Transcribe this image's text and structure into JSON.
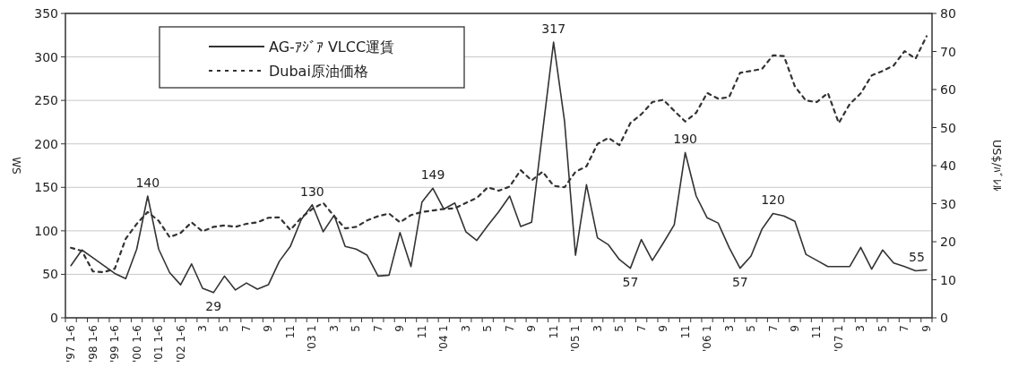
{
  "chart_data": {
    "type": "line",
    "ylabel": "WS",
    "y2label": "US$/ﾊﾞﾚﾙ",
    "ylim": [
      0,
      350
    ],
    "yticks": [
      0,
      50,
      100,
      150,
      200,
      250,
      300,
      350
    ],
    "y2lim": [
      0,
      80
    ],
    "y2ticks": [
      0,
      10,
      20,
      30,
      40,
      50,
      60,
      70,
      80
    ],
    "grid": "y",
    "legend": "top left",
    "categories": [
      "'97 1-6",
      null,
      "'98 1-6",
      null,
      "'99 1-6",
      null,
      "'00 1-6",
      null,
      "'01 1-6",
      null,
      "'02 1-6",
      null,
      "3",
      null,
      "5",
      null,
      "7",
      null,
      "9",
      null,
      "11",
      null,
      "'03 1",
      null,
      "3",
      null,
      "5",
      null,
      "7",
      null,
      "9",
      null,
      "11",
      null,
      "'04 1",
      null,
      "3",
      null,
      "5",
      null,
      "7",
      null,
      "9",
      null,
      "11",
      null,
      "'05 1",
      null,
      "3",
      null,
      "5",
      null,
      "7",
      null,
      "9",
      null,
      "11",
      null,
      "'06 1",
      null,
      "3",
      null,
      "5",
      null,
      "7",
      null,
      "9",
      null,
      "11",
      null,
      "'07 1",
      null,
      "3",
      null,
      "5",
      null,
      "7",
      null,
      "9"
    ],
    "series": [
      {
        "name": "AG-ｱｼﾞｱ VLCC運賃",
        "color": "#333333",
        "line_style": "solid",
        "values": [
          60,
          78,
          69,
          60,
          51,
          45,
          79,
          140,
          79,
          52,
          38,
          62,
          34,
          29,
          48,
          32,
          40,
          33,
          38,
          65,
          82,
          113,
          130,
          99,
          118,
          82,
          79,
          72,
          48,
          49,
          98,
          59,
          133,
          149,
          125,
          132,
          99,
          89,
          106,
          122,
          140,
          105,
          110,
          214,
          317,
          226,
          72,
          153,
          92,
          84,
          67,
          57,
          90,
          66,
          86,
          107,
          190,
          140,
          115,
          109,
          81,
          57,
          71,
          102,
          120,
          117,
          111,
          73,
          66,
          59,
          59,
          59,
          81,
          56,
          78,
          63,
          59,
          54,
          55
        ],
        "value_labels": [
          null,
          null,
          null,
          null,
          null,
          null,
          null,
          "140",
          null,
          null,
          null,
          null,
          null,
          "29",
          null,
          null,
          null,
          null,
          null,
          null,
          null,
          null,
          "130",
          null,
          null,
          null,
          null,
          null,
          null,
          null,
          null,
          null,
          null,
          "149",
          null,
          null,
          null,
          null,
          null,
          null,
          null,
          null,
          null,
          null,
          "317",
          null,
          null,
          null,
          null,
          null,
          null,
          "57",
          null,
          null,
          null,
          null,
          "190",
          null,
          null,
          null,
          null,
          "57",
          null,
          null,
          "120",
          null,
          null,
          null,
          null,
          null,
          null,
          null,
          null,
          null,
          null,
          null,
          null,
          null,
          "55"
        ]
      },
      {
        "name": "Dubai原油価格",
        "color": "#333333",
        "axis": "y2",
        "line_style": "dashed",
        "values": [
          18.4,
          17.6,
          12.2,
          12.0,
          12.9,
          20.8,
          24.7,
          27.8,
          25.5,
          21.2,
          22.3,
          25.1,
          22.7,
          23.9,
          24.3,
          23.9,
          24.7,
          25.1,
          26.3,
          26.4,
          23.1,
          26.3,
          28.6,
          30.2,
          26.7,
          23.5,
          23.9,
          25.6,
          26.7,
          27.4,
          25.1,
          27.0,
          27.8,
          28.2,
          28.6,
          28.8,
          30.2,
          31.5,
          34.3,
          33.4,
          34.5,
          38.8,
          36.1,
          38.4,
          34.7,
          34.3,
          38.4,
          39.8,
          45.7,
          47.3,
          45.4,
          51.2,
          53.5,
          56.7,
          57.3,
          54.4,
          51.6,
          53.9,
          59.1,
          57.6,
          58.0,
          64.4,
          64.9,
          65.4,
          69.0,
          68.8,
          60.8,
          57.1,
          56.7,
          59.1,
          51.2,
          56.2,
          59.0,
          63.7,
          64.9,
          66.3,
          70.1,
          68.1,
          74.0
        ]
      }
    ]
  }
}
